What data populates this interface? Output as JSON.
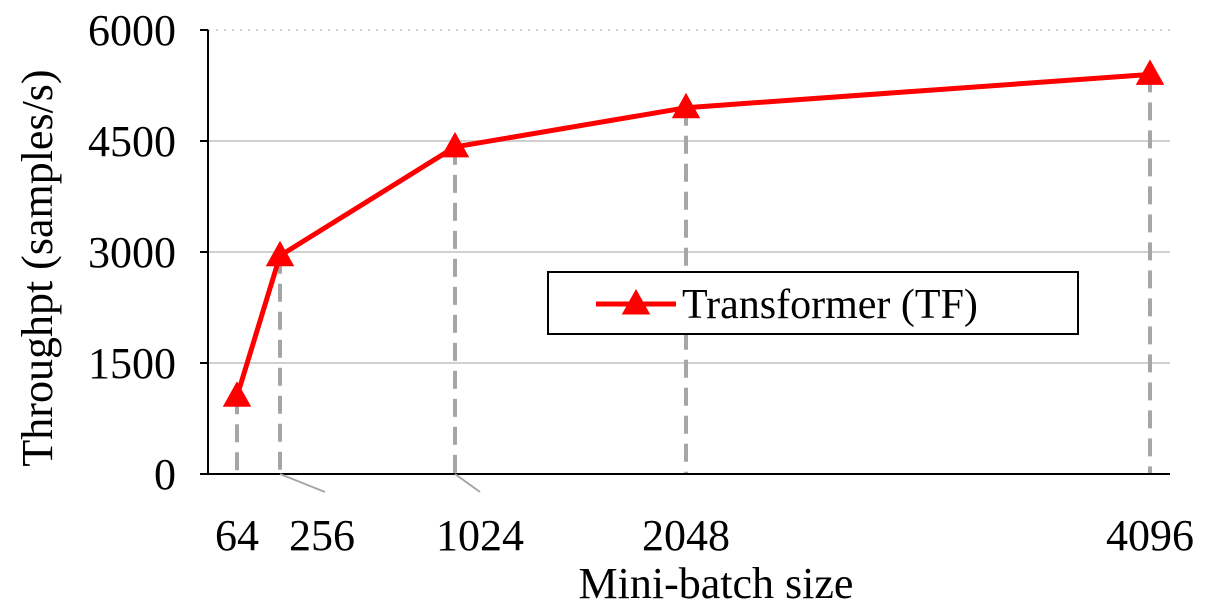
{
  "chart_data": {
    "type": "line",
    "title": "",
    "xlabel": "Mini-batch size",
    "ylabel": "Throughpt (samples/s)",
    "x": [
      "64",
      "256",
      "1024",
      "2048",
      "4096"
    ],
    "x_values": [
      64,
      256,
      1024,
      2048,
      4096
    ],
    "yticks": [
      "0",
      "1500",
      "3000",
      "4500",
      "6000"
    ],
    "ylim": [
      0,
      6000
    ],
    "grid": true,
    "legend": "center-right",
    "series": [
      {
        "name": "Transformer (TF)",
        "color": "#ff0000",
        "marker": "triangle",
        "values": [
          1050,
          2950,
          4420,
          4950,
          5400
        ]
      }
    ]
  }
}
